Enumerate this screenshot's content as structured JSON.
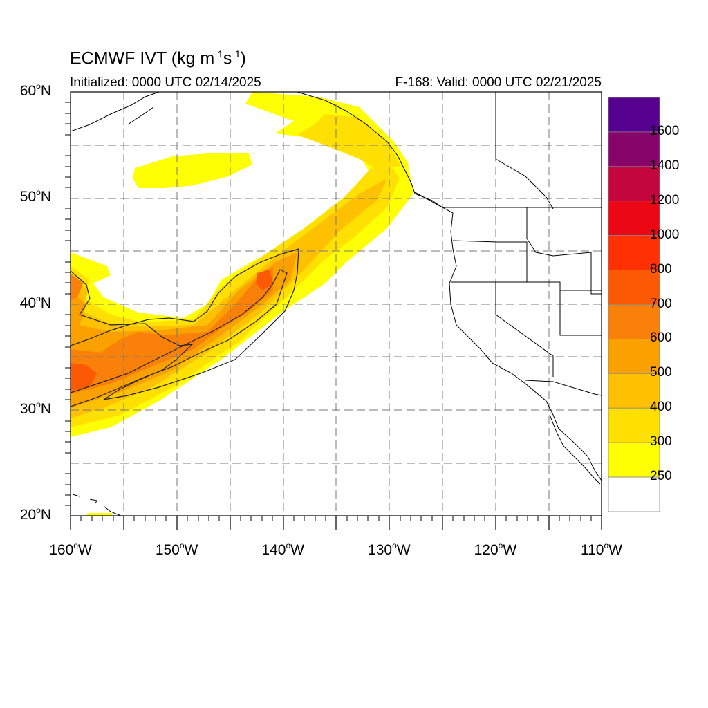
{
  "title": {
    "prefix": "ECMWF IVT (kg m",
    "exp1": "-1",
    "mid": "s",
    "exp2": "-1",
    "suffix": ")"
  },
  "subtitle_left": "Initialized: 0000 UTC 02/14/2025",
  "subtitle_right": "F-168: Valid: 0000 UTC 02/21/2025",
  "lat_ticks": [
    {
      "num": "60",
      "hem": "N",
      "value": 60
    },
    {
      "num": "50",
      "hem": "N",
      "value": 50
    },
    {
      "num": "40",
      "hem": "N",
      "value": 40
    },
    {
      "num": "30",
      "hem": "N",
      "value": 30
    },
    {
      "num": "20",
      "hem": "N",
      "value": 20
    }
  ],
  "lon_ticks": [
    {
      "num": "160",
      "hem": "W",
      "value": -160
    },
    {
      "num": "150",
      "hem": "W",
      "value": -150
    },
    {
      "num": "140",
      "hem": "W",
      "value": -140
    },
    {
      "num": "130",
      "hem": "W",
      "value": -130
    },
    {
      "num": "120",
      "hem": "W",
      "value": -120
    },
    {
      "num": "110",
      "hem": "W",
      "value": -110
    }
  ],
  "extent": {
    "lon_min": -160,
    "lon_max": -110,
    "lat_min": 20,
    "lat_max": 60
  },
  "colorbar": {
    "labels": [
      "1600",
      "1400",
      "1200",
      "1000",
      "800",
      "700",
      "600",
      "500",
      "400",
      "300",
      "250"
    ],
    "colors_top_to_bottom": [
      "#56008f",
      "#870468",
      "#c4063e",
      "#ec0715",
      "#ff3003",
      "#fc5905",
      "#f98009",
      "#faa100",
      "#fec101",
      "#ffe001",
      "#ffff03",
      "#ffffff"
    ]
  }
}
